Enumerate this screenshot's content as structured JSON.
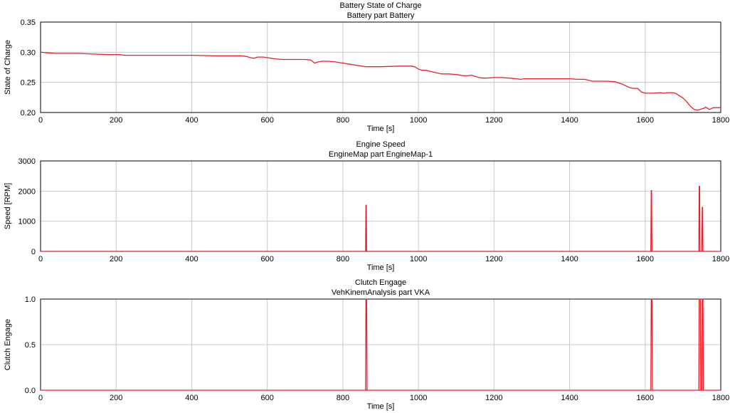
{
  "chart_data": [
    {
      "type": "line",
      "title": "Battery State of Charge",
      "subtitle": "Battery part Battery",
      "xlabel": "Time [s]",
      "ylabel": "State of Charge",
      "xlim": [
        0,
        1800
      ],
      "ylim": [
        0.2,
        0.35
      ],
      "xticks": [
        0,
        200,
        400,
        600,
        800,
        1000,
        1200,
        1400,
        1600,
        1800
      ],
      "yticks": [
        0.2,
        0.25,
        0.3,
        0.35
      ],
      "ytick_labels": [
        "0.20",
        "0.25",
        "0.30",
        "0.35"
      ],
      "grid": true,
      "line_color": "#e8202a",
      "series": [
        {
          "x": [
            0,
            20,
            40,
            60,
            80,
            100,
            140,
            180,
            210,
            220,
            250,
            300,
            400,
            460,
            500,
            530,
            545,
            555,
            565,
            575,
            590,
            600,
            620,
            640,
            660,
            680,
            700,
            715,
            725,
            735,
            745,
            760,
            780,
            800,
            820,
            840,
            860,
            900,
            950,
            980,
            990,
            1000,
            1010,
            1020,
            1040,
            1060,
            1080,
            1100,
            1120,
            1130,
            1140,
            1150,
            1160,
            1170,
            1180,
            1200,
            1220,
            1240,
            1260,
            1270,
            1280,
            1300,
            1350,
            1400,
            1420,
            1440,
            1460,
            1480,
            1500,
            1520,
            1540,
            1560,
            1570,
            1580,
            1590,
            1600,
            1620,
            1640,
            1650,
            1660,
            1670,
            1680,
            1690,
            1700,
            1710,
            1720,
            1730,
            1740,
            1750,
            1755,
            1760,
            1770,
            1780,
            1800
          ],
          "y": [
            0.3,
            0.299,
            0.298,
            0.298,
            0.298,
            0.298,
            0.297,
            0.296,
            0.296,
            0.295,
            0.295,
            0.295,
            0.295,
            0.294,
            0.294,
            0.294,
            0.293,
            0.291,
            0.29,
            0.292,
            0.292,
            0.291,
            0.289,
            0.288,
            0.288,
            0.288,
            0.288,
            0.287,
            0.282,
            0.284,
            0.285,
            0.285,
            0.284,
            0.282,
            0.28,
            0.278,
            0.276,
            0.276,
            0.277,
            0.277,
            0.276,
            0.272,
            0.27,
            0.27,
            0.267,
            0.264,
            0.264,
            0.263,
            0.261,
            0.261,
            0.262,
            0.26,
            0.258,
            0.257,
            0.257,
            0.258,
            0.258,
            0.257,
            0.256,
            0.255,
            0.256,
            0.256,
            0.256,
            0.256,
            0.255,
            0.255,
            0.252,
            0.252,
            0.252,
            0.251,
            0.247,
            0.241,
            0.24,
            0.24,
            0.234,
            0.232,
            0.232,
            0.233,
            0.232,
            0.233,
            0.233,
            0.232,
            0.228,
            0.224,
            0.218,
            0.21,
            0.205,
            0.204,
            0.206,
            0.207,
            0.209,
            0.205,
            0.208,
            0.208
          ]
        }
      ]
    },
    {
      "type": "line",
      "title": "Engine Speed",
      "subtitle": "EngineMap part EngineMap-1",
      "xlabel": "Time [s]",
      "ylabel": "Speed [RPM]",
      "xlim": [
        0,
        1800
      ],
      "ylim": [
        0,
        3000
      ],
      "xticks": [
        0,
        200,
        400,
        600,
        800,
        1000,
        1200,
        1400,
        1600,
        1800
      ],
      "yticks": [
        0,
        1000,
        2000,
        3000
      ],
      "ytick_labels": [
        "0",
        "1000",
        "2000",
        "3000"
      ],
      "grid": true,
      "line_color": "#e8202a",
      "series": [
        {
          "x": [
            0,
            860,
            861,
            862,
            863,
            1615,
            1616,
            1617,
            1618,
            1742,
            1743,
            1744,
            1745,
            1750,
            1751,
            1752,
            1753,
            1800
          ],
          "y": [
            0,
            0,
            1530,
            1530,
            0,
            0,
            2020,
            2020,
            0,
            0,
            2160,
            2160,
            0,
            0,
            1460,
            1460,
            0,
            0
          ]
        }
      ]
    },
    {
      "type": "line",
      "title": "Clutch Engage",
      "subtitle": "VehKinemAnalysis part VKA",
      "xlabel": "Time [s]",
      "ylabel": "Clutch Engage",
      "xlim": [
        0,
        1800
      ],
      "ylim": [
        0,
        1
      ],
      "xticks": [
        0,
        200,
        400,
        600,
        800,
        1000,
        1200,
        1400,
        1600,
        1800
      ],
      "yticks": [
        0,
        0.5,
        1
      ],
      "ytick_labels": [
        "0.0",
        "0.5",
        "1.0"
      ],
      "grid": true,
      "line_color": "#e8202a",
      "series": [
        {
          "x": [
            0,
            860,
            861,
            863,
            864,
            1615,
            1616,
            1618,
            1619,
            1742,
            1743,
            1746,
            1747,
            1750,
            1751,
            1753,
            1754,
            1800
          ],
          "y": [
            0,
            0,
            1,
            1,
            0,
            0,
            1,
            1,
            0,
            0,
            1,
            1,
            0,
            0,
            1,
            1,
            0,
            0
          ]
        }
      ]
    }
  ]
}
